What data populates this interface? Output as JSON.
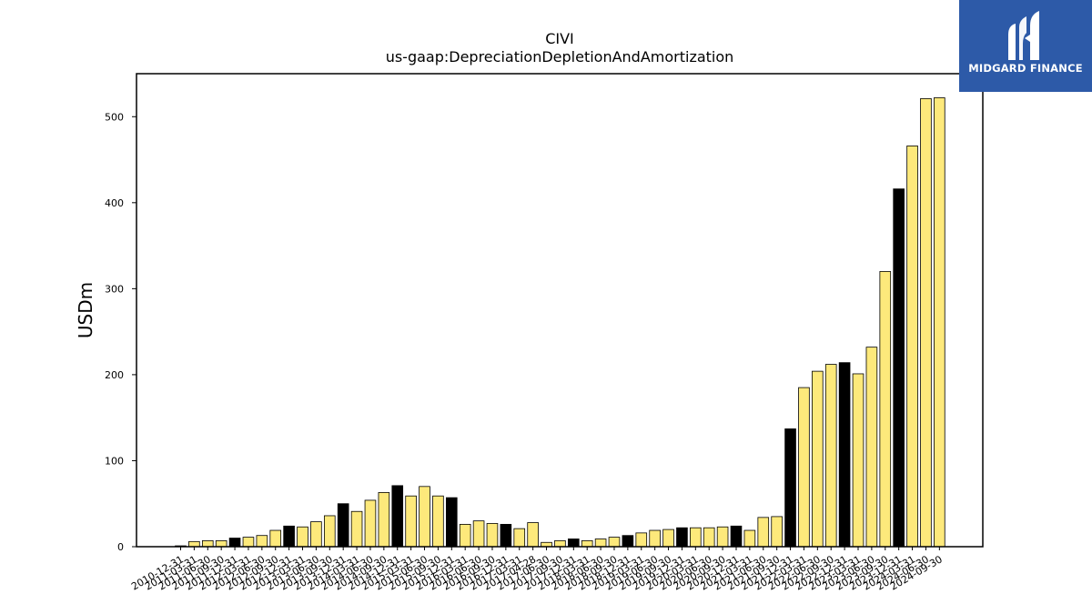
{
  "chart_data": {
    "type": "bar",
    "title": "CIVI",
    "subtitle": "us-gaap:DepreciationDepletionAndAmortization",
    "xlabel": "",
    "ylabel": "USDm",
    "ylim": [
      0,
      550
    ],
    "yticks": [
      0,
      100,
      200,
      300,
      400,
      500
    ],
    "grid": false,
    "colors": {
      "quarter": "#fde97b",
      "annual": "#000000",
      "edge": "#000000"
    },
    "categories": [
      "2010-12-31",
      "2011-03-31",
      "2011-06-30",
      "2011-09-30",
      "2011-12-31",
      "2012-03-31",
      "2012-06-30",
      "2012-09-30",
      "2012-12-31",
      "2013-03-31",
      "2013-06-30",
      "2013-09-30",
      "2013-12-31",
      "2014-03-31",
      "2014-06-30",
      "2014-09-30",
      "2014-12-31",
      "2015-03-31",
      "2015-06-30",
      "2015-09-30",
      "2015-12-31",
      "2016-03-31",
      "2016-06-30",
      "2016-09-30",
      "2016-12-31",
      "2017-03-31",
      "2017-04-28",
      "2017-06-30",
      "2017-09-30",
      "2017-12-31",
      "2018-03-31",
      "2018-06-30",
      "2018-09-30",
      "2018-12-31",
      "2019-03-31",
      "2019-06-30",
      "2019-09-30",
      "2019-12-31",
      "2020-03-31",
      "2020-06-30",
      "2020-09-30",
      "2020-12-31",
      "2021-03-31",
      "2021-06-30",
      "2021-09-30",
      "2021-12-31",
      "2022-03-31",
      "2022-06-30",
      "2022-09-30",
      "2022-12-31",
      "2023-03-31",
      "2023-06-30",
      "2023-09-30",
      "2023-12-31",
      "2024-03-31",
      "2024-06-30",
      "2024-09-30"
    ],
    "series": [
      {
        "values": [
          1,
          6,
          7,
          7,
          10,
          11,
          13,
          19,
          24,
          23,
          29,
          36,
          50,
          41,
          54,
          63,
          71,
          59,
          70,
          59,
          57,
          26,
          30,
          27,
          26,
          21,
          28,
          5,
          7,
          9,
          7,
          9,
          11,
          13,
          16,
          19,
          20,
          22,
          22,
          22,
          23,
          24,
          19,
          34,
          35,
          137,
          185,
          204,
          212,
          214,
          201,
          232,
          320,
          416,
          466,
          521,
          522
        ],
        "annual": [
          false,
          false,
          false,
          false,
          true,
          false,
          false,
          false,
          true,
          false,
          false,
          false,
          true,
          false,
          false,
          false,
          true,
          false,
          false,
          false,
          true,
          false,
          false,
          false,
          true,
          false,
          false,
          false,
          false,
          true,
          false,
          false,
          false,
          true,
          false,
          false,
          false,
          true,
          false,
          false,
          false,
          true,
          false,
          false,
          false,
          true,
          false,
          false,
          false,
          true,
          false,
          false,
          false,
          true,
          false,
          false,
          false
        ]
      }
    ]
  },
  "logo": {
    "text": "MIDGARD FINANCE"
  }
}
